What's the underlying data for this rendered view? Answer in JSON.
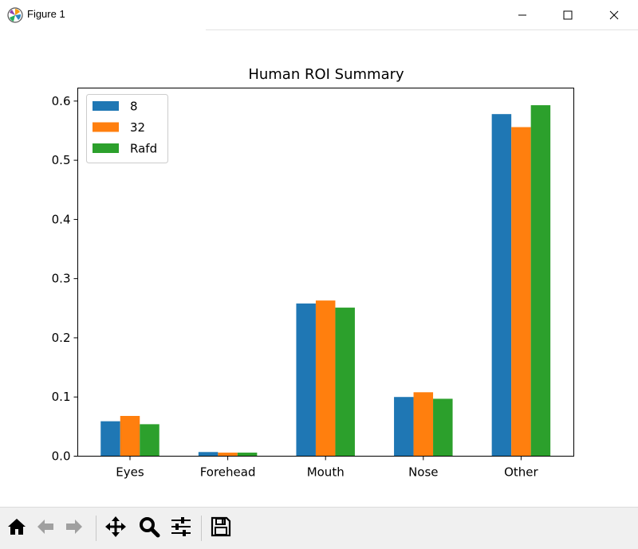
{
  "window": {
    "title": "Figure 1",
    "icon": "matplotlib-logo-icon",
    "controls": [
      "minimize-icon",
      "maximize-icon",
      "close-icon"
    ]
  },
  "toolbar": {
    "buttons": [
      {
        "name": "home-button",
        "icon": "home-icon"
      },
      {
        "name": "back-button",
        "icon": "arrow-left-icon"
      },
      {
        "name": "forward-button",
        "icon": "arrow-right-icon"
      },
      {
        "name": "pan-button",
        "icon": "move-icon"
      },
      {
        "name": "zoom-button",
        "icon": "magnifier-icon"
      },
      {
        "name": "configure-subplots-button",
        "icon": "sliders-icon"
      },
      {
        "name": "save-button",
        "icon": "floppy-disk-icon"
      }
    ]
  },
  "chart_data": {
    "type": "bar",
    "title": "Human ROI Summary",
    "xlabel": "",
    "ylabel": "",
    "categories": [
      "Eyes",
      "Forehead",
      "Mouth",
      "Nose",
      "Other"
    ],
    "series": [
      {
        "name": "8",
        "color": "#1f77b4",
        "values": [
          0.059,
          0.007,
          0.258,
          0.1,
          0.578
        ]
      },
      {
        "name": "32",
        "color": "#ff7f0e",
        "values": [
          0.068,
          0.006,
          0.263,
          0.108,
          0.556
        ]
      },
      {
        "name": "Rafd",
        "color": "#2ca02c",
        "values": [
          0.054,
          0.006,
          0.251,
          0.097,
          0.593
        ]
      }
    ],
    "ylim": [
      0,
      0.622
    ],
    "yticks": [
      "0.0",
      "0.1",
      "0.2",
      "0.3",
      "0.4",
      "0.5",
      "0.6"
    ],
    "ytick_values": [
      0,
      0.1,
      0.2,
      0.3,
      0.4,
      0.5,
      0.6
    ],
    "grid": false,
    "legend_position": "upper-left"
  }
}
